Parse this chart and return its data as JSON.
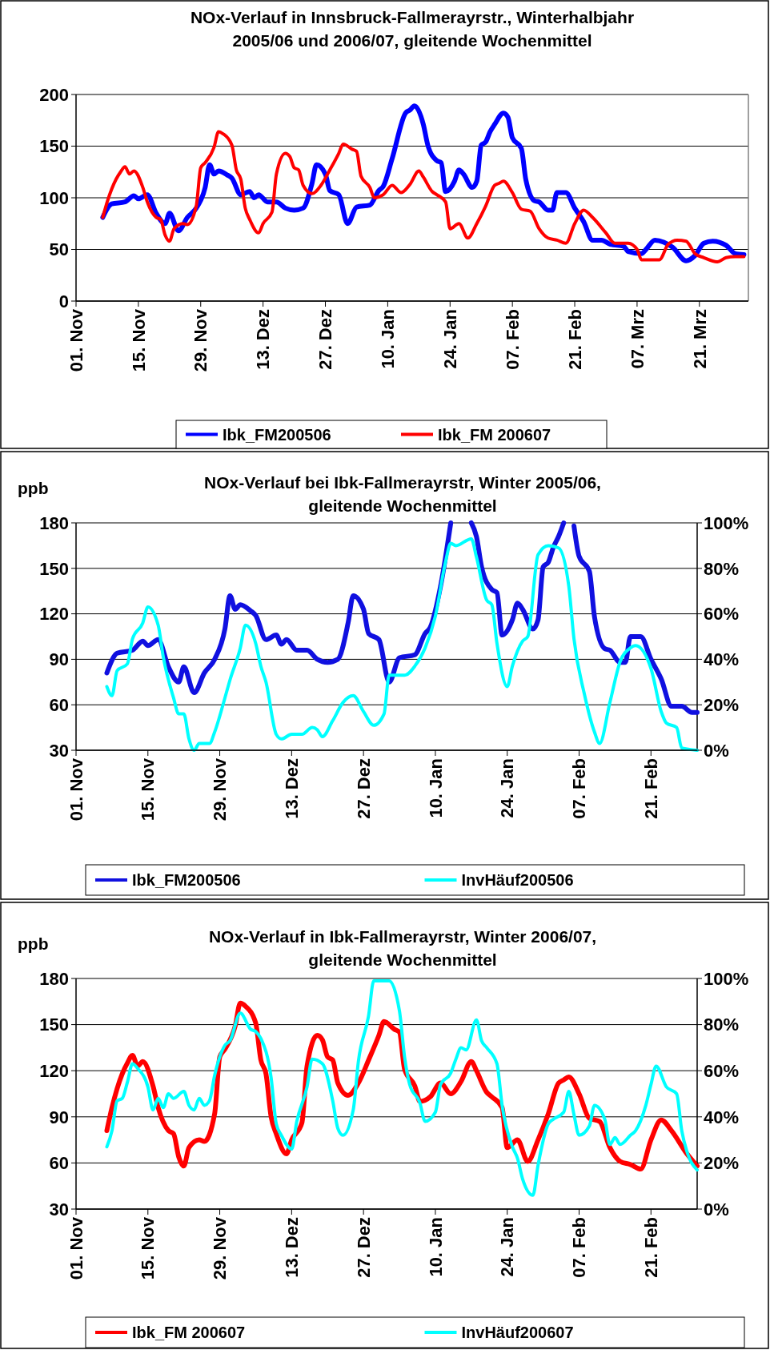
{
  "chart_data": [
    {
      "type": "line",
      "title": "NOx-Verlauf in Innsbruck-Fallmerayrstr., Winterhalbjahr\n2005/06 und 2006/07, gleitende Wochenmittel",
      "xlim": [
        "2005-11-01",
        "2006-04-01"
      ],
      "xticks": [
        {
          "value": "2005-11-01",
          "label": "01. Nov"
        },
        {
          "value": "2005-11-15",
          "label": "15. Nov"
        },
        {
          "value": "2005-11-29",
          "label": "29. Nov"
        },
        {
          "value": "2005-12-13",
          "label": "13. Dez"
        },
        {
          "value": "2005-12-27",
          "label": "27. Dez"
        },
        {
          "value": "2006-01-10",
          "label": "10. Jan"
        },
        {
          "value": "2006-01-24",
          "label": "24. Jan"
        },
        {
          "value": "2006-02-07",
          "label": "07. Feb"
        },
        {
          "value": "2006-02-21",
          "label": "21. Feb"
        },
        {
          "value": "2006-03-07",
          "label": "07. Mrz"
        },
        {
          "value": "2006-03-21",
          "label": "21. Mrz"
        }
      ],
      "ylim": [
        0,
        200
      ],
      "yticks": [
        0,
        50,
        100,
        150,
        200
      ],
      "grid": "y",
      "legend": "bottom",
      "series": [
        {
          "name": "Ibk_FM200506",
          "color": "#0000ff",
          "x": [
            "2005-11-07",
            "2005-11-09",
            "2005-11-12",
            "2005-11-14",
            "2005-11-15",
            "2005-11-17",
            "2005-11-19",
            "2005-11-21",
            "2005-11-22",
            "2005-11-24",
            "2005-11-26",
            "2005-11-28",
            "2005-11-30",
            "2005-12-01",
            "2005-12-02",
            "2005-12-03",
            "2005-12-05",
            "2005-12-06",
            "2005-12-08",
            "2005-12-10",
            "2005-12-11",
            "2005-12-12",
            "2005-12-14",
            "2005-12-16",
            "2005-12-18",
            "2005-12-20",
            "2005-12-22",
            "2005-12-24",
            "2005-12-25",
            "2005-12-27",
            "2005-12-28",
            "2005-12-30",
            "2006-01-01",
            "2006-01-03",
            "2006-01-06",
            "2006-01-08",
            "2006-01-09",
            "2006-01-11",
            "2006-01-14",
            "2006-01-15",
            "2006-01-16",
            "2006-01-18",
            "2006-01-19",
            "2006-01-21",
            "2006-01-22",
            "2006-01-23",
            "2006-01-25",
            "2006-01-26",
            "2006-01-27",
            "2006-01-29",
            "2006-01-30",
            "2006-01-31",
            "2006-02-01",
            "2006-02-02",
            "2006-02-03",
            "2006-02-05",
            "2006-02-06",
            "2006-02-07",
            "2006-02-09",
            "2006-02-10",
            "2006-02-12",
            "2006-02-13",
            "2006-02-15",
            "2006-02-16",
            "2006-02-17",
            "2006-02-19",
            "2006-02-21",
            "2006-02-23",
            "2006-02-25",
            "2006-02-27",
            "2006-03-01",
            "2006-03-04",
            "2006-03-05",
            "2006-03-08",
            "2006-03-09",
            "2006-03-11",
            "2006-03-13",
            "2006-03-15",
            "2006-03-18",
            "2006-03-20",
            "2006-03-22",
            "2006-03-24",
            "2006-03-27",
            "2006-03-29",
            "2006-03-31"
          ],
          "values": [
            81,
            94,
            96,
            102,
            99,
            103,
            85,
            75,
            85,
            68,
            81,
            90,
            110,
            132,
            123,
            126,
            122,
            119,
            103,
            106,
            100,
            103,
            96,
            96,
            90,
            88,
            90,
            114,
            132,
            123,
            107,
            103,
            75,
            91,
            93,
            107,
            111,
            138,
            182,
            185,
            189,
            171,
            151,
            136,
            134,
            106,
            116,
            127,
            123,
            110,
            116,
            151,
            154,
            164,
            171,
            182,
            178,
            158,
            148,
            118,
            97,
            96,
            88,
            88,
            105,
            105,
            90,
            77,
            59,
            59,
            55,
            53,
            48,
            46,
            50,
            59,
            57,
            52,
            39,
            44,
            56,
            58,
            54,
            46,
            45
          ]
        },
        {
          "name": "Ibk_FM 200607",
          "color": "#ff0000",
          "x": [
            "2005-11-07",
            "2005-11-08",
            "2005-11-10",
            "2005-11-11",
            "2005-11-12",
            "2005-11-13",
            "2005-11-14",
            "2005-11-16",
            "2005-11-17",
            "2005-11-19",
            "2005-11-20",
            "2005-11-21",
            "2005-11-22",
            "2005-11-23",
            "2005-11-25",
            "2005-11-26",
            "2005-11-28",
            "2005-11-29",
            "2005-11-30",
            "2005-12-02",
            "2005-12-03",
            "2005-12-04",
            "2005-12-06",
            "2005-12-07",
            "2005-12-08",
            "2005-12-09",
            "2005-12-10",
            "2005-12-12",
            "2005-12-13",
            "2005-12-15",
            "2005-12-16",
            "2005-12-18",
            "2005-12-19",
            "2005-12-20",
            "2005-12-21",
            "2005-12-22",
            "2005-12-24",
            "2005-12-26",
            "2005-12-28",
            "2005-12-30",
            "2005-12-31",
            "2006-01-02",
            "2006-01-03",
            "2006-01-04",
            "2006-01-06",
            "2006-01-07",
            "2006-01-09",
            "2006-01-11",
            "2006-01-13",
            "2006-01-15",
            "2006-01-17",
            "2006-01-18",
            "2006-01-20",
            "2006-01-21",
            "2006-01-23",
            "2006-01-24",
            "2006-01-26",
            "2006-01-28",
            "2006-01-30",
            "2006-02-01",
            "2006-02-03",
            "2006-02-04",
            "2006-02-05",
            "2006-02-07",
            "2006-02-09",
            "2006-02-11",
            "2006-02-13",
            "2006-02-15",
            "2006-02-17",
            "2006-02-19",
            "2006-02-21",
            "2006-02-23",
            "2006-02-25",
            "2006-02-28",
            "2006-03-02",
            "2006-03-05",
            "2006-03-07",
            "2006-03-08",
            "2006-03-12",
            "2006-03-14",
            "2006-03-16",
            "2006-03-18",
            "2006-03-20",
            "2006-03-22",
            "2006-03-25",
            "2006-03-27",
            "2006-03-29",
            "2006-03-31"
          ],
          "values": [
            81,
            96,
            118,
            125,
            130,
            123,
            126,
            110,
            96,
            81,
            79,
            64,
            58,
            70,
            75,
            74,
            92,
            129,
            134,
            149,
            164,
            162,
            151,
            127,
            118,
            90,
            79,
            66,
            75,
            86,
            123,
            143,
            140,
            129,
            127,
            112,
            104,
            112,
            127,
            143,
            152,
            147,
            145,
            121,
            110,
            100,
            103,
            112,
            105,
            113,
            126,
            120,
            106,
            103,
            96,
            70,
            75,
            61,
            75,
            92,
            112,
            114,
            116,
            105,
            89,
            87,
            70,
            61,
            59,
            56,
            75,
            88,
            81,
            66,
            56,
            56,
            50,
            40,
            40,
            55,
            59,
            58,
            46,
            42,
            38,
            42,
            43,
            43
          ]
        }
      ]
    },
    {
      "type": "line",
      "title": "NOx-Verlauf bei Ibk-Fallmerayrstr, Winter 2005/06,\ngleitende Wochenmittel",
      "ylabel": "ppb",
      "xlim": [
        "2005-11-01",
        "2006-03-02"
      ],
      "xticks": [
        {
          "value": "2005-11-01",
          "label": "01. Nov"
        },
        {
          "value": "2005-11-15",
          "label": "15. Nov"
        },
        {
          "value": "2005-11-29",
          "label": "29. Nov"
        },
        {
          "value": "2005-12-13",
          "label": "13. Dez"
        },
        {
          "value": "2005-12-27",
          "label": "27. Dez"
        },
        {
          "value": "2006-01-10",
          "label": "10. Jan"
        },
        {
          "value": "2006-01-24",
          "label": "24. Jan"
        },
        {
          "value": "2006-02-07",
          "label": "07. Feb"
        },
        {
          "value": "2006-02-21",
          "label": "21. Feb"
        }
      ],
      "ylim": [
        30,
        180
      ],
      "yticks": [
        30,
        60,
        90,
        120,
        150,
        180
      ],
      "y2lim": [
        0,
        100
      ],
      "y2ticks": [
        {
          "value": 0,
          "label": "0%"
        },
        {
          "value": 20,
          "label": "20%"
        },
        {
          "value": 40,
          "label": "40%"
        },
        {
          "value": 60,
          "label": "60%"
        },
        {
          "value": 80,
          "label": "80%"
        },
        {
          "value": 100,
          "label": "100%"
        }
      ],
      "grid": "y",
      "legend": "bottom",
      "series": [
        {
          "name": "Ibk_FM200506",
          "color": "#1010e0",
          "x": [
            "2005-11-07",
            "2005-11-09",
            "2005-11-12",
            "2005-11-14",
            "2005-11-15",
            "2005-11-17",
            "2005-11-19",
            "2005-11-21",
            "2005-11-22",
            "2005-11-24",
            "2005-11-26",
            "2005-11-28",
            "2005-11-30",
            "2005-12-01",
            "2005-12-02",
            "2005-12-03",
            "2005-12-05",
            "2005-12-06",
            "2005-12-08",
            "2005-12-10",
            "2005-12-11",
            "2005-12-12",
            "2005-12-14",
            "2005-12-16",
            "2005-12-18",
            "2005-12-20",
            "2005-12-22",
            "2005-12-24",
            "2005-12-25",
            "2005-12-27",
            "2005-12-28",
            "2005-12-30",
            "2006-01-01",
            "2006-01-03",
            "2006-01-06",
            "2006-01-08",
            "2006-01-09",
            "2006-01-11",
            "2006-01-13",
            "2006-01-14",
            "2006-01-16",
            "2006-01-17",
            "2006-01-18",
            "2006-01-19",
            "2006-01-21",
            "2006-01-22",
            "2006-01-23",
            "2006-01-25",
            "2006-01-26",
            "2006-01-27",
            "2006-01-29",
            "2006-01-30",
            "2006-01-31",
            "2006-02-01",
            "2006-02-02",
            "2006-02-03",
            "2006-02-04",
            "2006-02-05",
            "2006-02-06",
            "2006-02-07",
            "2006-02-09",
            "2006-02-10",
            "2006-02-12",
            "2006-02-13",
            "2006-02-15",
            "2006-02-16",
            "2006-02-17",
            "2006-02-19",
            "2006-02-21",
            "2006-02-23",
            "2006-02-25",
            "2006-02-27",
            "2006-03-01",
            "2006-03-02"
          ],
          "values": [
            81,
            94,
            96,
            102,
            99,
            103,
            85,
            75,
            85,
            68,
            81,
            90,
            110,
            132,
            123,
            126,
            122,
            119,
            103,
            106,
            100,
            103,
            96,
            96,
            90,
            88,
            90,
            114,
            132,
            123,
            107,
            103,
            75,
            91,
            93,
            107,
            111,
            138,
            180,
            null,
            null,
            180,
            171,
            151,
            136,
            134,
            106,
            116,
            127,
            123,
            110,
            116,
            151,
            154,
            164,
            171,
            180,
            null,
            178,
            158,
            148,
            118,
            97,
            96,
            88,
            88,
            105,
            105,
            90,
            77,
            59,
            59,
            55,
            55
          ]
        },
        {
          "name": "InvHäuf200506",
          "color": "#00ffff",
          "axis": "y2",
          "x": [
            "2005-11-07",
            "2005-11-08",
            "2005-11-09",
            "2005-11-11",
            "2005-11-12",
            "2005-11-14",
            "2005-11-15",
            "2005-11-17",
            "2005-11-18",
            "2005-11-20",
            "2005-11-21",
            "2005-11-22",
            "2005-11-23",
            "2005-11-24",
            "2005-11-25",
            "2005-11-27",
            "2005-11-28",
            "2005-11-30",
            "2005-12-01",
            "2005-12-03",
            "2005-12-04",
            "2005-12-06",
            "2005-12-07",
            "2005-12-08",
            "2005-12-10",
            "2005-12-11",
            "2005-12-13",
            "2005-12-15",
            "2005-12-17",
            "2005-12-18",
            "2005-12-19",
            "2005-12-21",
            "2005-12-23",
            "2005-12-25",
            "2005-12-27",
            "2005-12-29",
            "2005-12-31",
            "2006-01-01",
            "2006-01-04",
            "2006-01-06",
            "2006-01-08",
            "2006-01-10",
            "2006-01-12",
            "2006-01-13",
            "2006-01-14",
            "2006-01-17",
            "2006-01-18",
            "2006-01-20",
            "2006-01-21",
            "2006-01-22",
            "2006-01-24",
            "2006-01-25",
            "2006-01-27",
            "2006-01-28",
            "2006-01-30",
            "2006-02-01",
            "2006-02-03",
            "2006-02-05",
            "2006-02-06",
            "2006-02-08",
            "2006-02-10",
            "2006-02-11",
            "2006-02-13",
            "2006-02-15",
            "2006-02-17",
            "2006-02-18",
            "2006-02-21",
            "2006-02-23",
            "2006-02-24",
            "2006-02-26",
            "2006-02-27",
            "2006-03-02"
          ],
          "values": [
            28,
            24,
            35,
            38,
            49,
            56,
            63,
            55,
            41,
            23,
            16,
            16,
            5,
            0,
            3,
            3,
            8,
            23,
            31,
            45,
            55,
            47,
            37,
            30,
            7,
            5,
            7,
            7,
            10,
            9,
            6,
            13,
            21,
            24,
            17,
            11,
            16,
            33,
            33,
            37,
            45,
            59,
            83,
            91,
            90,
            93,
            85,
            66,
            64,
            47,
            28,
            37,
            48,
            50,
            86,
            90,
            89,
            72,
            49,
            25,
            8,
            3,
            21,
            39,
            45,
            46,
            36,
            17,
            12,
            10,
            1,
            0
          ]
        }
      ]
    },
    {
      "type": "line",
      "title": "NOx-Verlauf in Ibk-Fallmerayrstr, Winter 2006/07,\ngleitende Wochenmittel",
      "ylabel": "ppb",
      "xlim": [
        "2006-11-01",
        "2007-03-02"
      ],
      "xticks": [
        {
          "value": "2006-11-01",
          "label": "01. Nov"
        },
        {
          "value": "2006-11-15",
          "label": "15. Nov"
        },
        {
          "value": "2006-11-29",
          "label": "29. Nov"
        },
        {
          "value": "2006-12-13",
          "label": "13. Dez"
        },
        {
          "value": "2006-12-27",
          "label": "27. Dez"
        },
        {
          "value": "2007-01-10",
          "label": "10. Jan"
        },
        {
          "value": "2007-01-24",
          "label": "24. Jan"
        },
        {
          "value": "2007-02-07",
          "label": "07. Feb"
        },
        {
          "value": "2007-02-21",
          "label": "21. Feb"
        }
      ],
      "ylim": [
        30,
        180
      ],
      "yticks": [
        30,
        60,
        90,
        120,
        150,
        180
      ],
      "y2lim": [
        0,
        100
      ],
      "y2ticks": [
        {
          "value": 0,
          "label": "0%"
        },
        {
          "value": 20,
          "label": "20%"
        },
        {
          "value": 40,
          "label": "40%"
        },
        {
          "value": 60,
          "label": "60%"
        },
        {
          "value": 80,
          "label": "80%"
        },
        {
          "value": 100,
          "label": "100%"
        }
      ],
      "grid": "y",
      "legend": "bottom",
      "series": [
        {
          "name": "Ibk_FM 200607",
          "color": "#ff0000",
          "x": [
            "2006-11-07",
            "2006-11-08",
            "2006-11-10",
            "2006-11-11",
            "2006-11-12",
            "2006-11-13",
            "2006-11-14",
            "2006-11-16",
            "2006-11-17",
            "2006-11-19",
            "2006-11-20",
            "2006-11-21",
            "2006-11-22",
            "2006-11-23",
            "2006-11-25",
            "2006-11-26",
            "2006-11-28",
            "2006-11-29",
            "2006-11-30",
            "2006-12-02",
            "2006-12-03",
            "2006-12-04",
            "2006-12-06",
            "2006-12-07",
            "2006-12-08",
            "2006-12-09",
            "2006-12-10",
            "2006-12-12",
            "2006-12-13",
            "2006-12-15",
            "2006-12-16",
            "2006-12-18",
            "2006-12-19",
            "2006-12-20",
            "2006-12-21",
            "2006-12-22",
            "2006-12-24",
            "2006-12-26",
            "2006-12-28",
            "2006-12-30",
            "2006-12-31",
            "2007-01-02",
            "2007-01-03",
            "2007-01-04",
            "2007-01-06",
            "2007-01-07",
            "2007-01-09",
            "2007-01-11",
            "2007-01-13",
            "2007-01-15",
            "2007-01-17",
            "2007-01-18",
            "2007-01-20",
            "2007-01-21",
            "2007-01-23",
            "2007-01-24",
            "2007-01-26",
            "2007-01-28",
            "2007-01-30",
            "2007-02-01",
            "2007-02-03",
            "2007-02-04",
            "2007-02-05",
            "2007-02-07",
            "2007-02-09",
            "2007-02-11",
            "2007-02-13",
            "2007-02-15",
            "2007-02-17",
            "2007-02-19",
            "2007-02-21",
            "2007-02-23",
            "2007-02-25",
            "2007-02-28",
            "2007-03-02"
          ],
          "values": [
            81,
            96,
            118,
            125,
            130,
            123,
            126,
            110,
            96,
            81,
            79,
            64,
            58,
            70,
            75,
            74,
            92,
            129,
            134,
            149,
            164,
            162,
            151,
            127,
            118,
            90,
            79,
            66,
            75,
            86,
            123,
            143,
            140,
            129,
            127,
            112,
            104,
            112,
            127,
            143,
            152,
            147,
            145,
            121,
            110,
            100,
            103,
            112,
            105,
            113,
            126,
            120,
            106,
            103,
            96,
            70,
            75,
            61,
            75,
            92,
            112,
            114,
            116,
            105,
            89,
            87,
            70,
            61,
            59,
            56,
            75,
            88,
            81,
            66,
            58
          ]
        },
        {
          "name": "InvHäuf200607",
          "color": "#00ffff",
          "axis": "y2",
          "x": [
            "2006-11-07",
            "2006-11-08",
            "2006-11-09",
            "2006-11-10",
            "2006-11-11",
            "2006-11-12",
            "2006-11-13",
            "2006-11-15",
            "2006-11-16",
            "2006-11-17",
            "2006-11-18",
            "2006-11-19",
            "2006-11-20",
            "2006-11-22",
            "2006-11-23",
            "2006-11-24",
            "2006-11-25",
            "2006-11-26",
            "2006-11-27",
            "2006-11-28",
            "2006-11-29",
            "2006-11-30",
            "2006-12-01",
            "2006-12-03",
            "2006-12-05",
            "2006-12-06",
            "2006-12-07",
            "2006-12-09",
            "2006-12-10",
            "2006-12-11",
            "2006-12-13",
            "2006-12-14",
            "2006-12-16",
            "2006-12-17",
            "2006-12-19",
            "2006-12-21",
            "2006-12-22",
            "2006-12-23",
            "2006-12-25",
            "2006-12-26",
            "2006-12-28",
            "2006-12-29",
            "2007-01-01",
            "2007-01-03",
            "2007-01-04",
            "2007-01-05",
            "2007-01-07",
            "2007-01-08",
            "2007-01-10",
            "2007-01-11",
            "2007-01-13",
            "2007-01-14",
            "2007-01-15",
            "2007-01-16",
            "2007-01-18",
            "2007-01-19",
            "2007-01-20",
            "2007-01-22",
            "2007-01-23",
            "2007-01-25",
            "2007-01-26",
            "2007-01-27",
            "2007-01-29",
            "2007-01-30",
            "2007-02-01",
            "2007-02-02",
            "2007-02-04",
            "2007-02-05",
            "2007-02-06",
            "2007-02-07",
            "2007-02-09",
            "2007-02-10",
            "2007-02-12",
            "2007-02-13",
            "2007-02-14",
            "2007-02-15",
            "2007-02-17",
            "2007-02-18",
            "2007-02-20",
            "2007-02-21",
            "2007-02-22",
            "2007-02-24",
            "2007-02-26",
            "2007-02-27",
            "2007-02-28",
            "2007-03-02"
          ],
          "values": [
            27,
            34,
            47,
            48,
            55,
            63,
            61,
            53,
            43,
            48,
            44,
            50,
            48,
            51,
            45,
            43,
            48,
            45,
            47,
            58,
            66,
            71,
            73,
            85,
            78,
            77,
            74,
            57,
            37,
            32,
            26,
            38,
            53,
            65,
            63,
            47,
            35,
            32,
            43,
            64,
            84,
            99,
            99,
            86,
            66,
            54,
            46,
            38,
            42,
            54,
            59,
            65,
            70,
            69,
            82,
            73,
            70,
            63,
            45,
            27,
            22,
            13,
            6,
            19,
            37,
            39,
            42,
            51,
            41,
            32,
            36,
            45,
            39,
            28,
            31,
            28,
            32,
            34,
            45,
            54,
            62,
            53,
            50,
            34,
            25,
            17
          ]
        }
      ]
    }
  ]
}
